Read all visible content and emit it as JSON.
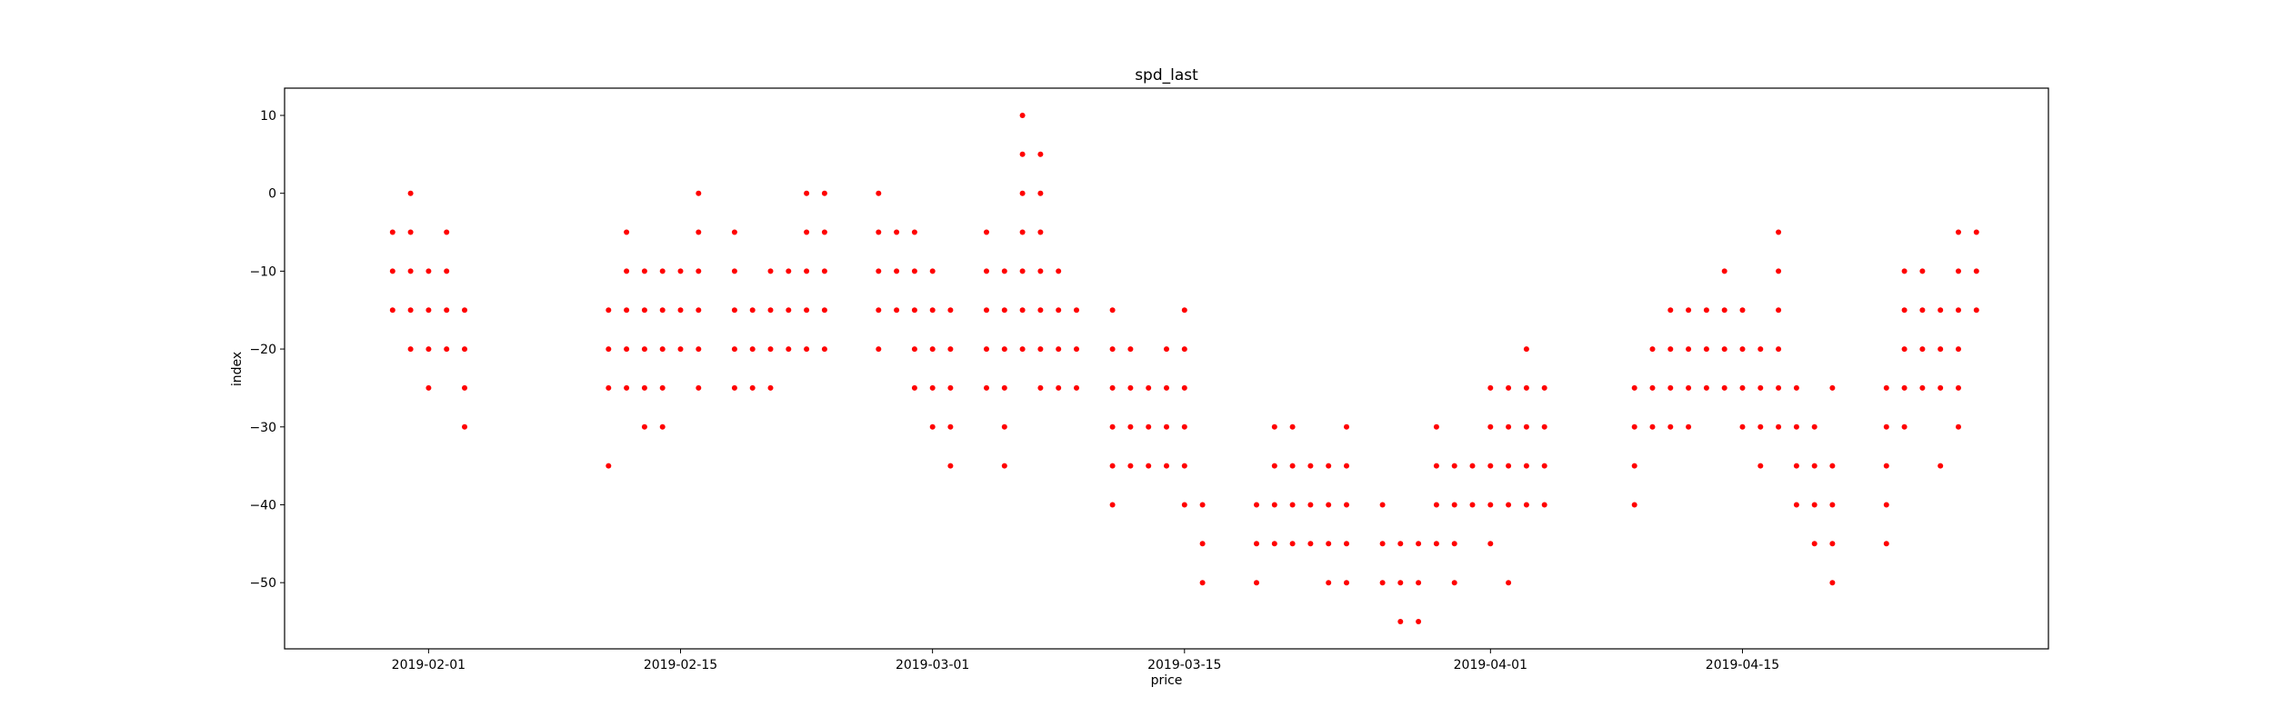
{
  "chart_data": {
    "type": "scatter",
    "title": "spd_last",
    "xlabel": "price",
    "ylabel": "index",
    "x_type": "date",
    "xlim": [
      "2019-01-24",
      "2019-05-02"
    ],
    "ylim": [
      -58.5,
      13.5
    ],
    "x_ticks": [
      "2019-02-01",
      "2019-02-15",
      "2019-03-01",
      "2019-03-15",
      "2019-04-01",
      "2019-04-15"
    ],
    "y_ticks": [
      10,
      0,
      -10,
      -20,
      -30,
      -40,
      -50
    ],
    "grid": false,
    "marker_color": "#ff0000",
    "points": [
      [
        "2019-01-30",
        -15
      ],
      [
        "2019-01-30",
        -5
      ],
      [
        "2019-01-30",
        -10
      ],
      [
        "2019-01-31",
        -10
      ],
      [
        "2019-01-31",
        -15
      ],
      [
        "2019-01-31",
        -20
      ],
      [
        "2019-01-31",
        -5
      ],
      [
        "2019-01-31",
        0
      ],
      [
        "2019-02-01",
        -10
      ],
      [
        "2019-02-01",
        -15
      ],
      [
        "2019-02-01",
        -20
      ],
      [
        "2019-02-01",
        -25
      ],
      [
        "2019-02-02",
        -5
      ],
      [
        "2019-02-02",
        -10
      ],
      [
        "2019-02-02",
        -15
      ],
      [
        "2019-02-02",
        -20
      ],
      [
        "2019-02-03",
        -15
      ],
      [
        "2019-02-03",
        -20
      ],
      [
        "2019-02-03",
        -25
      ],
      [
        "2019-02-03",
        -30
      ],
      [
        "2019-02-11",
        -35
      ],
      [
        "2019-02-11",
        -15
      ],
      [
        "2019-02-11",
        -20
      ],
      [
        "2019-02-11",
        -25
      ],
      [
        "2019-02-12",
        -5
      ],
      [
        "2019-02-12",
        -10
      ],
      [
        "2019-02-12",
        -15
      ],
      [
        "2019-02-12",
        -20
      ],
      [
        "2019-02-12",
        -25
      ],
      [
        "2019-02-13",
        -10
      ],
      [
        "2019-02-13",
        -15
      ],
      [
        "2019-02-13",
        -20
      ],
      [
        "2019-02-13",
        -25
      ],
      [
        "2019-02-13",
        -30
      ],
      [
        "2019-02-14",
        -10
      ],
      [
        "2019-02-14",
        -15
      ],
      [
        "2019-02-14",
        -20
      ],
      [
        "2019-02-14",
        -25
      ],
      [
        "2019-02-14",
        -30
      ],
      [
        "2019-02-15",
        -10
      ],
      [
        "2019-02-15",
        -15
      ],
      [
        "2019-02-15",
        -20
      ],
      [
        "2019-02-16",
        -15
      ],
      [
        "2019-02-16",
        -20
      ],
      [
        "2019-02-16",
        -10
      ],
      [
        "2019-02-16",
        -25
      ],
      [
        "2019-02-16",
        -5
      ],
      [
        "2019-02-16",
        0
      ],
      [
        "2019-02-18",
        -5
      ],
      [
        "2019-02-18",
        -10
      ],
      [
        "2019-02-18",
        -15
      ],
      [
        "2019-02-18",
        -20
      ],
      [
        "2019-02-18",
        -25
      ],
      [
        "2019-02-19",
        -15
      ],
      [
        "2019-02-19",
        -20
      ],
      [
        "2019-02-19",
        -25
      ],
      [
        "2019-02-20",
        -10
      ],
      [
        "2019-02-20",
        -15
      ],
      [
        "2019-02-20",
        -20
      ],
      [
        "2019-02-20",
        -25
      ],
      [
        "2019-02-21",
        -10
      ],
      [
        "2019-02-21",
        -15
      ],
      [
        "2019-02-21",
        -20
      ],
      [
        "2019-02-22",
        -10
      ],
      [
        "2019-02-22",
        -15
      ],
      [
        "2019-02-22",
        -20
      ],
      [
        "2019-02-22",
        -5
      ],
      [
        "2019-02-22",
        0
      ],
      [
        "2019-02-23",
        -10
      ],
      [
        "2019-02-23",
        -15
      ],
      [
        "2019-02-23",
        -20
      ],
      [
        "2019-02-23",
        -5
      ],
      [
        "2019-02-23",
        0
      ],
      [
        "2019-02-26",
        0
      ],
      [
        "2019-02-26",
        -5
      ],
      [
        "2019-02-26",
        -10
      ],
      [
        "2019-02-26",
        -15
      ],
      [
        "2019-02-26",
        -20
      ],
      [
        "2019-02-27",
        -5
      ],
      [
        "2019-02-27",
        -10
      ],
      [
        "2019-02-27",
        -15
      ],
      [
        "2019-02-28",
        -10
      ],
      [
        "2019-02-28",
        -15
      ],
      [
        "2019-02-28",
        -20
      ],
      [
        "2019-02-28",
        -5
      ],
      [
        "2019-02-28",
        -25
      ],
      [
        "2019-03-01",
        -10
      ],
      [
        "2019-03-01",
        -15
      ],
      [
        "2019-03-01",
        -20
      ],
      [
        "2019-03-01",
        -25
      ],
      [
        "2019-03-01",
        -30
      ],
      [
        "2019-03-02",
        -15
      ],
      [
        "2019-03-02",
        -20
      ],
      [
        "2019-03-02",
        -25
      ],
      [
        "2019-03-02",
        -30
      ],
      [
        "2019-03-02",
        -35
      ],
      [
        "2019-03-04",
        -10
      ],
      [
        "2019-03-04",
        -15
      ],
      [
        "2019-03-04",
        -20
      ],
      [
        "2019-03-04",
        -25
      ],
      [
        "2019-03-04",
        -5
      ],
      [
        "2019-03-05",
        -10
      ],
      [
        "2019-03-05",
        -15
      ],
      [
        "2019-03-05",
        -20
      ],
      [
        "2019-03-05",
        -25
      ],
      [
        "2019-03-05",
        -30
      ],
      [
        "2019-03-05",
        -35
      ],
      [
        "2019-03-06",
        -5
      ],
      [
        "2019-03-06",
        -10
      ],
      [
        "2019-03-06",
        -15
      ],
      [
        "2019-03-06",
        -20
      ],
      [
        "2019-03-06",
        0
      ],
      [
        "2019-03-06",
        5
      ],
      [
        "2019-03-06",
        10
      ],
      [
        "2019-03-07",
        -10
      ],
      [
        "2019-03-07",
        -15
      ],
      [
        "2019-03-07",
        -20
      ],
      [
        "2019-03-07",
        -25
      ],
      [
        "2019-03-07",
        -5
      ],
      [
        "2019-03-07",
        0
      ],
      [
        "2019-03-07",
        5
      ],
      [
        "2019-03-08",
        -10
      ],
      [
        "2019-03-08",
        -15
      ],
      [
        "2019-03-08",
        -20
      ],
      [
        "2019-03-08",
        -25
      ],
      [
        "2019-03-09",
        -15
      ],
      [
        "2019-03-09",
        -20
      ],
      [
        "2019-03-09",
        -25
      ],
      [
        "2019-03-11",
        -15
      ],
      [
        "2019-03-11",
        -20
      ],
      [
        "2019-03-11",
        -25
      ],
      [
        "2019-03-11",
        -30
      ],
      [
        "2019-03-11",
        -35
      ],
      [
        "2019-03-11",
        -40
      ],
      [
        "2019-03-12",
        -20
      ],
      [
        "2019-03-12",
        -25
      ],
      [
        "2019-03-12",
        -30
      ],
      [
        "2019-03-12",
        -35
      ],
      [
        "2019-03-13",
        -25
      ],
      [
        "2019-03-13",
        -30
      ],
      [
        "2019-03-13",
        -35
      ],
      [
        "2019-03-14",
        -20
      ],
      [
        "2019-03-14",
        -25
      ],
      [
        "2019-03-14",
        -30
      ],
      [
        "2019-03-14",
        -35
      ],
      [
        "2019-03-15",
        -15
      ],
      [
        "2019-03-15",
        -20
      ],
      [
        "2019-03-15",
        -25
      ],
      [
        "2019-03-15",
        -30
      ],
      [
        "2019-03-15",
        -35
      ],
      [
        "2019-03-15",
        -40
      ],
      [
        "2019-03-16",
        -40
      ],
      [
        "2019-03-16",
        -45
      ],
      [
        "2019-03-16",
        -50
      ],
      [
        "2019-03-19",
        -40
      ],
      [
        "2019-03-19",
        -45
      ],
      [
        "2019-03-19",
        -50
      ],
      [
        "2019-03-20",
        -30
      ],
      [
        "2019-03-20",
        -40
      ],
      [
        "2019-03-20",
        -45
      ],
      [
        "2019-03-20",
        -35
      ],
      [
        "2019-03-21",
        -30
      ],
      [
        "2019-03-21",
        -35
      ],
      [
        "2019-03-21",
        -40
      ],
      [
        "2019-03-21",
        -45
      ],
      [
        "2019-03-22",
        -35
      ],
      [
        "2019-03-22",
        -40
      ],
      [
        "2019-03-22",
        -45
      ],
      [
        "2019-03-23",
        -35
      ],
      [
        "2019-03-23",
        -40
      ],
      [
        "2019-03-23",
        -45
      ],
      [
        "2019-03-23",
        -50
      ],
      [
        "2019-03-24",
        -30
      ],
      [
        "2019-03-24",
        -35
      ],
      [
        "2019-03-24",
        -40
      ],
      [
        "2019-03-24",
        -45
      ],
      [
        "2019-03-24",
        -50
      ],
      [
        "2019-03-26",
        -40
      ],
      [
        "2019-03-26",
        -45
      ],
      [
        "2019-03-26",
        -50
      ],
      [
        "2019-03-27",
        -45
      ],
      [
        "2019-03-27",
        -50
      ],
      [
        "2019-03-27",
        -55
      ],
      [
        "2019-03-28",
        -45
      ],
      [
        "2019-03-28",
        -50
      ],
      [
        "2019-03-28",
        -55
      ],
      [
        "2019-03-29",
        -30
      ],
      [
        "2019-03-29",
        -35
      ],
      [
        "2019-03-29",
        -40
      ],
      [
        "2019-03-29",
        -45
      ],
      [
        "2019-03-30",
        -35
      ],
      [
        "2019-03-30",
        -40
      ],
      [
        "2019-03-30",
        -45
      ],
      [
        "2019-03-30",
        -50
      ],
      [
        "2019-03-31",
        -35
      ],
      [
        "2019-03-31",
        -40
      ],
      [
        "2019-04-01",
        -25
      ],
      [
        "2019-04-01",
        -30
      ],
      [
        "2019-04-01",
        -35
      ],
      [
        "2019-04-01",
        -40
      ],
      [
        "2019-04-01",
        -45
      ],
      [
        "2019-04-02",
        -25
      ],
      [
        "2019-04-02",
        -30
      ],
      [
        "2019-04-02",
        -35
      ],
      [
        "2019-04-02",
        -40
      ],
      [
        "2019-04-02",
        -50
      ],
      [
        "2019-04-03",
        -20
      ],
      [
        "2019-04-03",
        -25
      ],
      [
        "2019-04-03",
        -30
      ],
      [
        "2019-04-03",
        -35
      ],
      [
        "2019-04-03",
        -40
      ],
      [
        "2019-04-04",
        -25
      ],
      [
        "2019-04-04",
        -30
      ],
      [
        "2019-04-04",
        -35
      ],
      [
        "2019-04-04",
        -40
      ],
      [
        "2019-04-09",
        -25
      ],
      [
        "2019-04-09",
        -30
      ],
      [
        "2019-04-09",
        -35
      ],
      [
        "2019-04-09",
        -40
      ],
      [
        "2019-04-10",
        -20
      ],
      [
        "2019-04-10",
        -25
      ],
      [
        "2019-04-10",
        -30
      ],
      [
        "2019-04-11",
        -15
      ],
      [
        "2019-04-11",
        -20
      ],
      [
        "2019-04-11",
        -25
      ],
      [
        "2019-04-11",
        -30
      ],
      [
        "2019-04-12",
        -15
      ],
      [
        "2019-04-12",
        -20
      ],
      [
        "2019-04-12",
        -25
      ],
      [
        "2019-04-12",
        -30
      ],
      [
        "2019-04-13",
        -15
      ],
      [
        "2019-04-13",
        -20
      ],
      [
        "2019-04-13",
        -25
      ],
      [
        "2019-04-14",
        -10
      ],
      [
        "2019-04-14",
        -15
      ],
      [
        "2019-04-14",
        -20
      ],
      [
        "2019-04-14",
        -25
      ],
      [
        "2019-04-15",
        -15
      ],
      [
        "2019-04-15",
        -20
      ],
      [
        "2019-04-15",
        -25
      ],
      [
        "2019-04-15",
        -30
      ],
      [
        "2019-04-16",
        -20
      ],
      [
        "2019-04-16",
        -25
      ],
      [
        "2019-04-16",
        -30
      ],
      [
        "2019-04-16",
        -35
      ],
      [
        "2019-04-17",
        -15
      ],
      [
        "2019-04-17",
        -20
      ],
      [
        "2019-04-17",
        -25
      ],
      [
        "2019-04-17",
        -30
      ],
      [
        "2019-04-17",
        -10
      ],
      [
        "2019-04-17",
        -5
      ],
      [
        "2019-04-18",
        -25
      ],
      [
        "2019-04-18",
        -30
      ],
      [
        "2019-04-18",
        -35
      ],
      [
        "2019-04-18",
        -40
      ],
      [
        "2019-04-19",
        -30
      ],
      [
        "2019-04-19",
        -35
      ],
      [
        "2019-04-19",
        -40
      ],
      [
        "2019-04-19",
        -45
      ],
      [
        "2019-04-20",
        -25
      ],
      [
        "2019-04-20",
        -35
      ],
      [
        "2019-04-20",
        -40
      ],
      [
        "2019-04-20",
        -45
      ],
      [
        "2019-04-20",
        -50
      ],
      [
        "2019-04-23",
        -25
      ],
      [
        "2019-04-23",
        -30
      ],
      [
        "2019-04-23",
        -35
      ],
      [
        "2019-04-23",
        -40
      ],
      [
        "2019-04-23",
        -45
      ],
      [
        "2019-04-24",
        -15
      ],
      [
        "2019-04-24",
        -20
      ],
      [
        "2019-04-24",
        -25
      ],
      [
        "2019-04-24",
        -30
      ],
      [
        "2019-04-24",
        -10
      ],
      [
        "2019-04-25",
        -15
      ],
      [
        "2019-04-25",
        -20
      ],
      [
        "2019-04-25",
        -25
      ],
      [
        "2019-04-25",
        -10
      ],
      [
        "2019-04-26",
        -15
      ],
      [
        "2019-04-26",
        -20
      ],
      [
        "2019-04-26",
        -25
      ],
      [
        "2019-04-26",
        -35
      ],
      [
        "2019-04-27",
        -5
      ],
      [
        "2019-04-27",
        -10
      ],
      [
        "2019-04-27",
        -15
      ],
      [
        "2019-04-27",
        -20
      ],
      [
        "2019-04-27",
        -25
      ],
      [
        "2019-04-27",
        -30
      ],
      [
        "2019-04-28",
        -5
      ],
      [
        "2019-04-28",
        -10
      ],
      [
        "2019-04-28",
        -15
      ]
    ]
  }
}
